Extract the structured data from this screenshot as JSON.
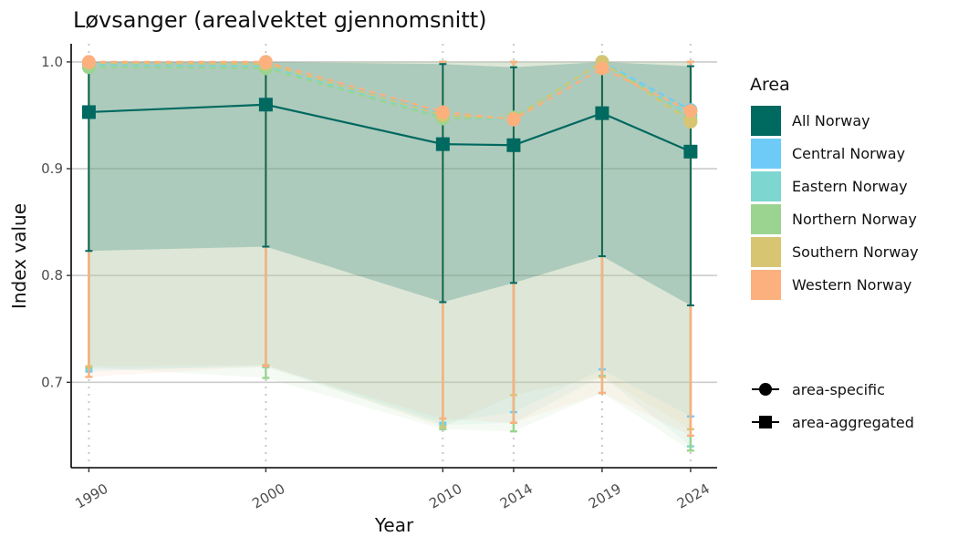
{
  "chart_data": {
    "type": "line",
    "title": "Løvsanger (arealvektet gjennomsnitt)",
    "xlabel": "Year",
    "ylabel": "Index value",
    "x": [
      1990,
      2000,
      2010,
      2014,
      2019,
      2024
    ],
    "x_ticks": [
      "1990",
      "2000",
      "2010",
      "2014",
      "2019",
      "2024"
    ],
    "y_ticks": [
      "0.7",
      "0.8",
      "0.9",
      "1.0"
    ],
    "y_tick_values": [
      0.7,
      0.8,
      0.9,
      1.0
    ],
    "xlim": [
      1989,
      2025.5
    ],
    "ylim": [
      0.62,
      1.017
    ],
    "grid": "horizontal major gridlines, vertical dotted lines at years",
    "legend": {
      "title": "Area",
      "placement": "right",
      "shape_entries": [
        {
          "label": "area-specific",
          "shape": "circle"
        },
        {
          "label": "area-aggregated",
          "shape": "square"
        }
      ]
    },
    "series": [
      {
        "name": "All Norway",
        "color": "#006960",
        "shape": "square",
        "line": "solid",
        "values": [
          0.953,
          0.96,
          0.923,
          0.922,
          0.952,
          0.916
        ],
        "lower": [
          0.823,
          0.827,
          0.775,
          0.793,
          0.818,
          0.772
        ],
        "upper": [
          1.0,
          1.0,
          0.998,
          0.995,
          1.0,
          0.996
        ]
      },
      {
        "name": "Central Norway",
        "color": "#6ecbf7",
        "shape": "circle",
        "line": "dashed",
        "values": [
          0.998,
          0.998,
          0.951,
          0.946,
          1.0,
          0.955
        ],
        "lower": [
          0.71,
          0.716,
          0.662,
          0.672,
          0.712,
          0.668
        ],
        "upper": [
          1.0,
          1.0,
          1.0,
          1.0,
          1.0,
          1.0
        ]
      },
      {
        "name": "Eastern Norway",
        "color": "#7dd6cf",
        "shape": "circle",
        "line": "dashed",
        "values": [
          0.997,
          0.996,
          0.948,
          0.946,
          1.0,
          0.95
        ],
        "lower": [
          0.712,
          0.714,
          0.66,
          0.662,
          0.706,
          0.64
        ],
        "upper": [
          1.0,
          1.0,
          1.0,
          1.0,
          1.0,
          1.0
        ]
      },
      {
        "name": "Northern Norway",
        "color": "#9bd491",
        "shape": "circle",
        "line": "dashed",
        "values": [
          0.995,
          0.994,
          0.947,
          0.948,
          1.0,
          0.946
        ],
        "lower": [
          0.714,
          0.704,
          0.656,
          0.654,
          0.69,
          0.636
        ],
        "upper": [
          1.0,
          1.0,
          1.0,
          1.0,
          1.0,
          1.0
        ]
      },
      {
        "name": "Southern Norway",
        "color": "#d7c572",
        "shape": "circle",
        "line": "dashed",
        "values": [
          0.999,
          0.998,
          0.95,
          0.947,
          1.0,
          0.944
        ],
        "lower": [
          0.715,
          0.716,
          0.658,
          0.688,
          0.705,
          0.656
        ],
        "upper": [
          1.0,
          1.0,
          1.0,
          1.0,
          1.0,
          1.0
        ]
      },
      {
        "name": "Western Norway",
        "color": "#fbb07e",
        "shape": "circle",
        "line": "dashed",
        "values": [
          1.0,
          1.0,
          0.953,
          0.946,
          0.994,
          0.954
        ],
        "lower": [
          0.705,
          0.715,
          0.666,
          0.662,
          0.69,
          0.65
        ],
        "upper": [
          1.0,
          1.0,
          1.0,
          1.0,
          1.0,
          1.0
        ]
      }
    ]
  }
}
